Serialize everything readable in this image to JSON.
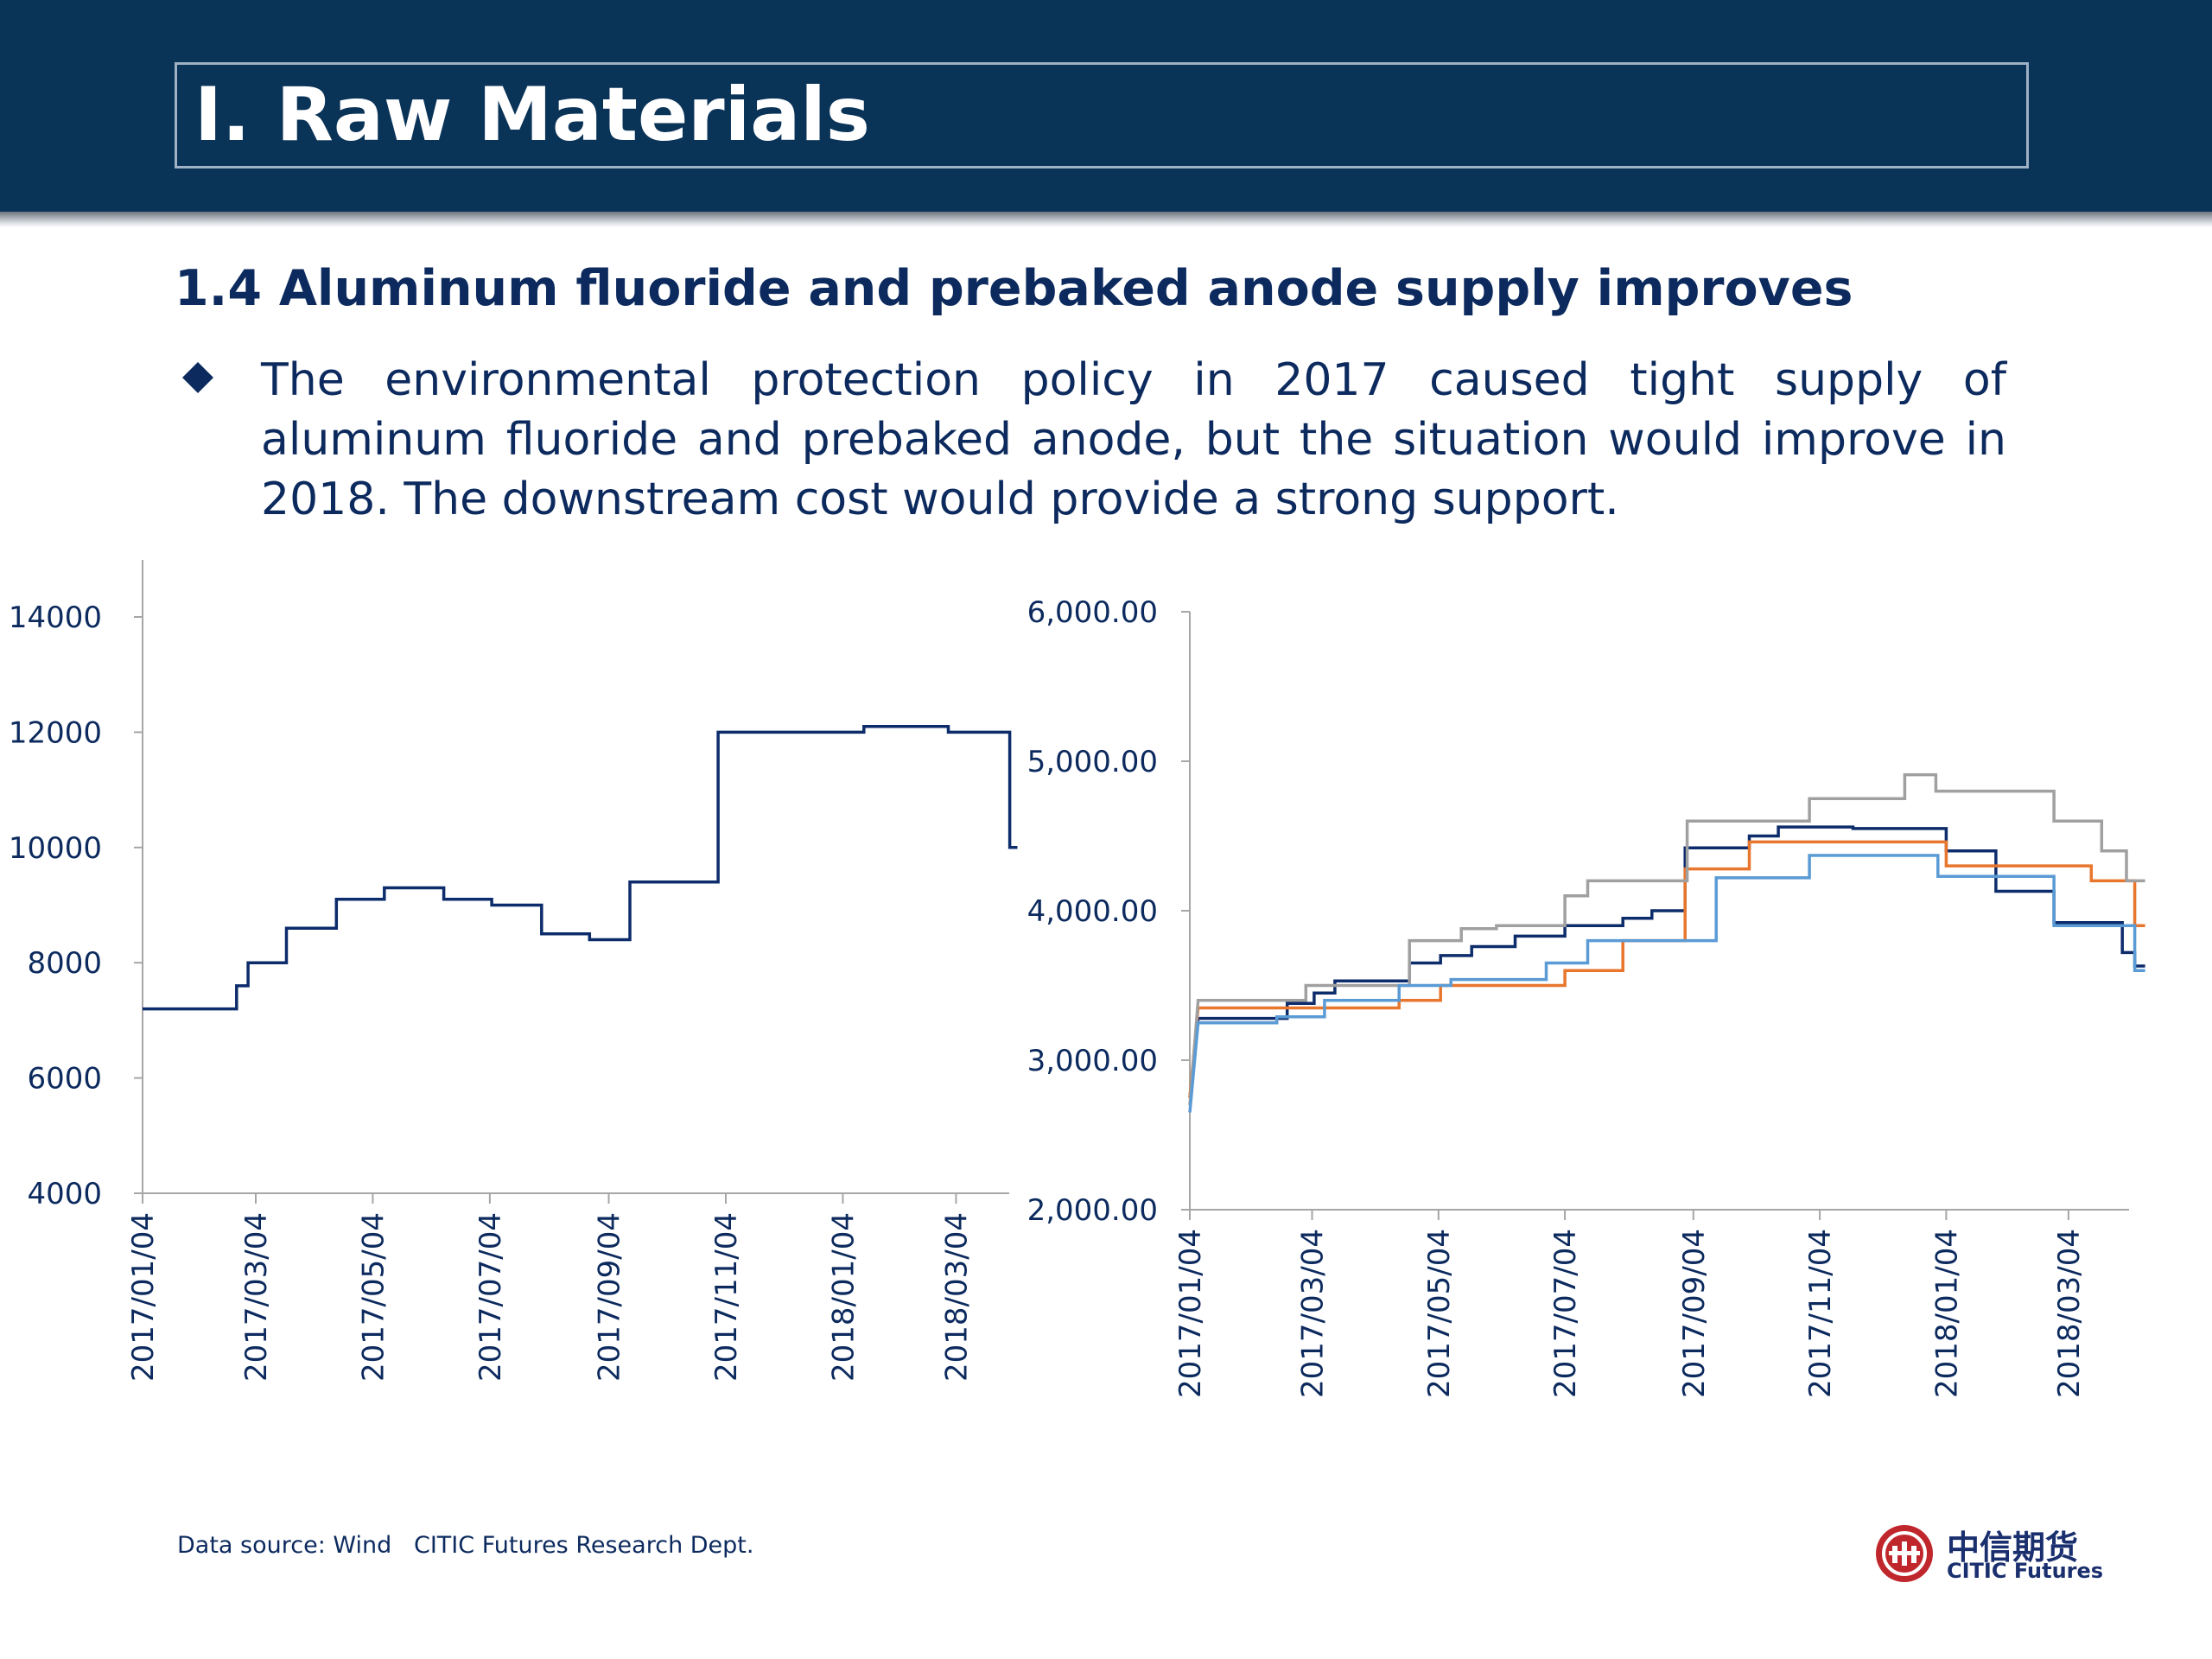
{
  "header": {
    "title": "I. Raw Materials"
  },
  "section": {
    "subtitle": "1.4 Aluminum fluoride and prebaked anode supply improves",
    "bullet_icon": "diamond-bullet-icon",
    "bullet_text": "The environmental protection policy in 2017 caused tight supply of aluminum fluoride and prebaked anode, but the situation would improve in 2018. The downstream cost would provide a strong support."
  },
  "chart_data": [
    {
      "type": "line",
      "title": "",
      "xlabel": "",
      "ylabel": "",
      "ylim": [
        4000,
        14000
      ],
      "y_ticks": [
        "14000",
        "12000",
        "10000",
        "8000",
        "6000",
        "4000"
      ],
      "x_tick_labels": [
        "2017/01/04",
        "2017/03/04",
        "2017/05/04",
        "2017/07/04",
        "2017/09/04",
        "2017/11/04",
        "2018/01/04",
        "2018/03/04"
      ],
      "grid": false,
      "series": [
        {
          "color": "#0d2c6b",
          "points": [
            [
              "2017-01-04",
              7200
            ],
            [
              "2017-02-22",
              7200
            ],
            [
              "2017-02-22",
              7600
            ],
            [
              "2017-02-28",
              7600
            ],
            [
              "2017-02-28",
              8000
            ],
            [
              "2017-03-07",
              8000
            ],
            [
              "2017-03-07",
              8000
            ],
            [
              "2017-03-20",
              8000
            ],
            [
              "2017-03-20",
              8600
            ],
            [
              "2017-04-15",
              8600
            ],
            [
              "2017-04-15",
              9100
            ],
            [
              "2017-05-10",
              9100
            ],
            [
              "2017-05-10",
              9300
            ],
            [
              "2017-06-10",
              9300
            ],
            [
              "2017-06-10",
              9100
            ],
            [
              "2017-07-05",
              9100
            ],
            [
              "2017-07-05",
              9000
            ],
            [
              "2017-07-31",
              9000
            ],
            [
              "2017-07-31",
              8500
            ],
            [
              "2017-08-25",
              8500
            ],
            [
              "2017-08-25",
              8400
            ],
            [
              "2017-09-15",
              8400
            ],
            [
              "2017-09-15",
              9400
            ],
            [
              "2017-10-31",
              9400
            ],
            [
              "2017-10-31",
              12000
            ],
            [
              "2018-01-15",
              12000
            ],
            [
              "2018-01-15",
              12100
            ],
            [
              "2018-02-28",
              12100
            ],
            [
              "2018-02-28",
              12000
            ],
            [
              "2018-04-01",
              12000
            ],
            [
              "2018-04-01",
              10000
            ],
            [
              "2018-04-05",
              10000
            ]
          ]
        }
      ]
    },
    {
      "type": "line",
      "title": "",
      "xlabel": "",
      "ylabel": "",
      "ylim": [
        2000,
        6000
      ],
      "y_ticks": [
        "6,000.00",
        "5,000.00",
        "4,000.00",
        "3,000.00",
        "2,000.00"
      ],
      "x_tick_labels": [
        "2017/01/04",
        "2017/03/04",
        "2017/05/04",
        "2017/07/04",
        "2017/09/04",
        "2017/11/04",
        "2018/01/04",
        "2018/03/04"
      ],
      "grid": false,
      "series": [
        {
          "color": "#0d2c6b",
          "points": [
            [
              "2017-01-04",
              2750
            ],
            [
              "2017-01-08",
              3280
            ],
            [
              "2017-02-20",
              3280
            ],
            [
              "2017-02-20",
              3380
            ],
            [
              "2017-03-05",
              3380
            ],
            [
              "2017-03-05",
              3450
            ],
            [
              "2017-03-15",
              3450
            ],
            [
              "2017-03-15",
              3530
            ],
            [
              "2017-04-20",
              3530
            ],
            [
              "2017-04-20",
              3650
            ],
            [
              "2017-05-05",
              3650
            ],
            [
              "2017-05-05",
              3700
            ],
            [
              "2017-05-20",
              3700
            ],
            [
              "2017-05-20",
              3760
            ],
            [
              "2017-06-10",
              3760
            ],
            [
              "2017-06-10",
              3830
            ],
            [
              "2017-07-04",
              3830
            ],
            [
              "2017-07-04",
              3900
            ],
            [
              "2017-08-01",
              3900
            ],
            [
              "2017-08-01",
              3950
            ],
            [
              "2017-08-15",
              3950
            ],
            [
              "2017-08-15",
              4000
            ],
            [
              "2017-08-31",
              4000
            ],
            [
              "2017-08-31",
              4420
            ],
            [
              "2017-10-01",
              4420
            ],
            [
              "2017-10-01",
              4500
            ],
            [
              "2017-10-15",
              4500
            ],
            [
              "2017-10-15",
              4560
            ],
            [
              "2017-11-20",
              4560
            ],
            [
              "2017-11-20",
              4550
            ],
            [
              "2018-01-04",
              4550
            ],
            [
              "2018-01-04",
              4400
            ],
            [
              "2018-01-28",
              4400
            ],
            [
              "2018-01-28",
              4130
            ],
            [
              "2018-02-25",
              4130
            ],
            [
              "2018-02-25",
              3920
            ],
            [
              "2018-03-30",
              3920
            ],
            [
              "2018-03-30",
              3720
            ],
            [
              "2018-04-05",
              3720
            ],
            [
              "2018-04-05",
              3630
            ],
            [
              "2018-04-10",
              3630
            ]
          ]
        },
        {
          "color": "#e8762d",
          "points": [
            [
              "2017-01-04",
              2750
            ],
            [
              "2017-01-08",
              3350
            ],
            [
              "2017-03-15",
              3350
            ],
            [
              "2017-03-15",
              3350
            ],
            [
              "2017-04-15",
              3350
            ],
            [
              "2017-04-15",
              3400
            ],
            [
              "2017-05-05",
              3400
            ],
            [
              "2017-05-05",
              3500
            ],
            [
              "2017-07-04",
              3500
            ],
            [
              "2017-07-04",
              3600
            ],
            [
              "2017-08-01",
              3600
            ],
            [
              "2017-08-01",
              3800
            ],
            [
              "2017-08-31",
              3800
            ],
            [
              "2017-08-31",
              4280
            ],
            [
              "2017-10-01",
              4280
            ],
            [
              "2017-10-01",
              4460
            ],
            [
              "2018-01-04",
              4460
            ],
            [
              "2018-01-04",
              4300
            ],
            [
              "2018-03-15",
              4300
            ],
            [
              "2018-03-15",
              4200
            ],
            [
              "2018-04-05",
              4200
            ],
            [
              "2018-04-05",
              3900
            ],
            [
              "2018-04-10",
              3900
            ]
          ]
        },
        {
          "color": "#a0a0a0",
          "points": [
            [
              "2017-01-04",
              2700
            ],
            [
              "2017-01-08",
              3400
            ],
            [
              "2017-03-01",
              3400
            ],
            [
              "2017-03-01",
              3500
            ],
            [
              "2017-04-20",
              3500
            ],
            [
              "2017-04-20",
              3800
            ],
            [
              "2017-05-15",
              3800
            ],
            [
              "2017-05-15",
              3880
            ],
            [
              "2017-06-01",
              3880
            ],
            [
              "2017-06-01",
              3900
            ],
            [
              "2017-07-04",
              3900
            ],
            [
              "2017-07-04",
              4100
            ],
            [
              "2017-07-15",
              4100
            ],
            [
              "2017-07-15",
              4200
            ],
            [
              "2017-09-01",
              4200
            ],
            [
              "2017-09-01",
              4600
            ],
            [
              "2017-10-30",
              4600
            ],
            [
              "2017-10-30",
              4750
            ],
            [
              "2017-12-15",
              4750
            ],
            [
              "2017-12-15",
              4910
            ],
            [
              "2017-12-30",
              4910
            ],
            [
              "2017-12-30",
              4800
            ],
            [
              "2018-02-25",
              4800
            ],
            [
              "2018-02-25",
              4600
            ],
            [
              "2018-03-20",
              4600
            ],
            [
              "2018-03-20",
              4400
            ],
            [
              "2018-04-01",
              4400
            ],
            [
              "2018-04-01",
              4200
            ],
            [
              "2018-04-10",
              4200
            ]
          ]
        },
        {
          "color": "#5b9bd5",
          "points": [
            [
              "2017-01-04",
              2650
            ],
            [
              "2017-01-08",
              3250
            ],
            [
              "2017-02-15",
              3250
            ],
            [
              "2017-02-15",
              3290
            ],
            [
              "2017-03-10",
              3290
            ],
            [
              "2017-03-10",
              3400
            ],
            [
              "2017-04-15",
              3400
            ],
            [
              "2017-04-15",
              3500
            ],
            [
              "2017-05-10",
              3500
            ],
            [
              "2017-05-10",
              3540
            ],
            [
              "2017-06-25",
              3540
            ],
            [
              "2017-06-25",
              3650
            ],
            [
              "2017-07-15",
              3650
            ],
            [
              "2017-07-15",
              3800
            ],
            [
              "2017-09-15",
              3800
            ],
            [
              "2017-09-15",
              4220
            ],
            [
              "2017-10-30",
              4220
            ],
            [
              "2017-10-30",
              4370
            ],
            [
              "2017-12-31",
              4370
            ],
            [
              "2017-12-31",
              4230
            ],
            [
              "2018-02-25",
              4230
            ],
            [
              "2018-02-25",
              3900
            ],
            [
              "2018-04-05",
              3900
            ],
            [
              "2018-04-05",
              3600
            ],
            [
              "2018-04-10",
              3600
            ]
          ]
        }
      ]
    }
  ],
  "footer": {
    "source": "Data source: Wind   CITIC Futures Research Dept.",
    "logo_cn": "中信期货",
    "logo_en": "CITIC Futures",
    "logo_icon": "citic-logo-icon",
    "logo_color": "#c0272d"
  }
}
